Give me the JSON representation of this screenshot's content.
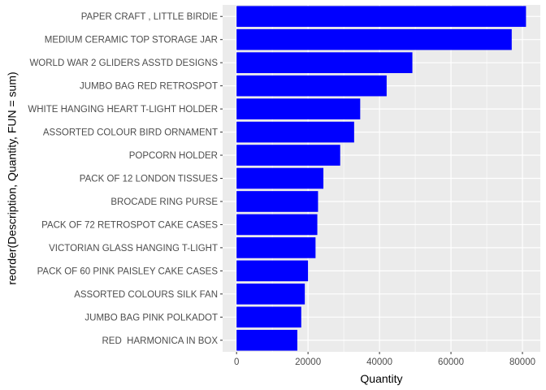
{
  "chart_data": {
    "type": "bar",
    "orientation": "horizontal",
    "categories": [
      "PAPER CRAFT , LITTLE BIRDIE",
      "MEDIUM CERAMIC TOP STORAGE JAR",
      "WORLD WAR 2 GLIDERS ASSTD DESIGNS",
      "JUMBO BAG RED RETROSPOT",
      "WHITE HANGING HEART T-LIGHT HOLDER",
      "ASSORTED COLOUR BIRD ORNAMENT",
      "POPCORN HOLDER",
      "PACK OF 12 LONDON TISSUES",
      "BROCADE RING PURSE",
      "PACK OF 72 RETROSPOT CAKE CASES",
      "VICTORIAN GLASS HANGING T-LIGHT",
      "PACK OF 60 PINK PAISLEY CAKE CASES",
      "ASSORTED COLOURS SILK FAN",
      "JUMBO BAG PINK POLKADOT",
      "RED  HARMONICA IN BOX"
    ],
    "values": [
      80995,
      77000,
      49200,
      42000,
      34600,
      32900,
      29000,
      24300,
      22800,
      22600,
      22100,
      20000,
      19100,
      18100,
      17000
    ],
    "xlabel": "Quantity",
    "ylabel": "reorder(Description, Quantity, FUN = sum)",
    "xlim": [
      -3900,
      85000
    ],
    "x_ticks": [
      0,
      20000,
      40000,
      60000,
      80000
    ],
    "x_tick_labels": [
      "0",
      "20000",
      "40000",
      "60000",
      "80000"
    ],
    "grid": true,
    "bar_color": "#0000ff",
    "panel_background": "#ebebeb",
    "grid_color": "#ffffff"
  }
}
